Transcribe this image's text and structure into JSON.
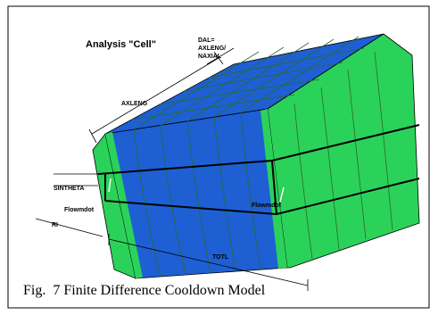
{
  "figure": {
    "labels": {
      "title": "Analysis \"Cell\"",
      "dal": [
        "DAL=",
        "AXLENG/",
        "NAXIAL"
      ],
      "axleng": "AXLENG",
      "sintheta": "SINTHETA",
      "flowmdot_left": "Flowmdot",
      "flowmdot_right": "Flowmdot",
      "ri": "RI",
      "totl": "TOTL"
    },
    "caption": "Fig.  7 Finite Difference Cooldown Model"
  }
}
